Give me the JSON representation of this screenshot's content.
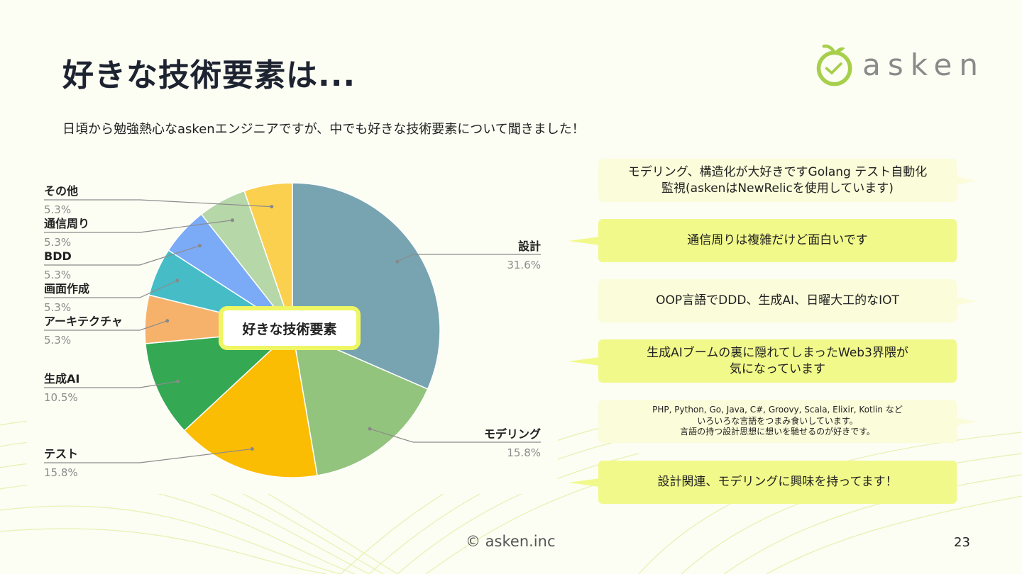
{
  "slide": {
    "title": "好きな技術要素は...",
    "subtitle": "日頃から勉強熱心なaskenエンジニアですが、中でも好きな技術要素について聞きました！",
    "logo_text": "asken",
    "footer": "© asken.inc",
    "page_number": "23"
  },
  "colors": {
    "accent": "#eef763",
    "bubble_pale": "#fbfcd9",
    "bubble_bright": "#f1f98a",
    "logo_green": "#a6cf4b"
  },
  "chart_data": {
    "type": "pie",
    "title": "好きな技術要素",
    "slices": [
      {
        "label": "設計",
        "value": 31.6,
        "display": "31.6%",
        "color": "#77a4b0"
      },
      {
        "label": "モデリング",
        "value": 15.8,
        "display": "15.8%",
        "color": "#93c47d"
      },
      {
        "label": "テスト",
        "value": 15.8,
        "display": "15.8%",
        "color": "#fbbc04"
      },
      {
        "label": "生成AI",
        "value": 10.5,
        "display": "10.5%",
        "color": "#34a853"
      },
      {
        "label": "アーキテクチャ",
        "value": 5.3,
        "display": "5.3%",
        "color": "#f6b26b"
      },
      {
        "label": "画面作成",
        "value": 5.3,
        "display": "5.3%",
        "color": "#46bdc6"
      },
      {
        "label": "BDD",
        "value": 5.3,
        "display": "5.3%",
        "color": "#7baaf7"
      },
      {
        "label": "通信周り",
        "value": 5.3,
        "display": "5.3%",
        "color": "#b6d7a8"
      },
      {
        "label": "その他",
        "value": 5.3,
        "display": "5.3%",
        "color": "#fcd04f"
      }
    ]
  },
  "comments": [
    {
      "text": "モデリング、構造化が大好きですGolang テスト自動化\n監視(askenはNewRelicを使用しています)",
      "style": "pale"
    },
    {
      "text": "通信周りは複雑だけど面白いです",
      "style": "bright"
    },
    {
      "text": "OOP言語でDDD、生成AI、日曜大工的なIOT",
      "style": "pale"
    },
    {
      "text": "生成AIブームの裏に隠れてしまったWeb3界隈が\n気になっています",
      "style": "bright"
    },
    {
      "text": "PHP, Python, Go, Java, C#, Groovy, Scala, Elixir, Kotlin など\nいろいろな言語をつまみ食いしています。\n言語の持つ設計思想に想いを馳せるのが好きです。",
      "style": "pale"
    },
    {
      "text": "設計関連、モデリングに興味を持ってます！",
      "style": "bright"
    }
  ]
}
